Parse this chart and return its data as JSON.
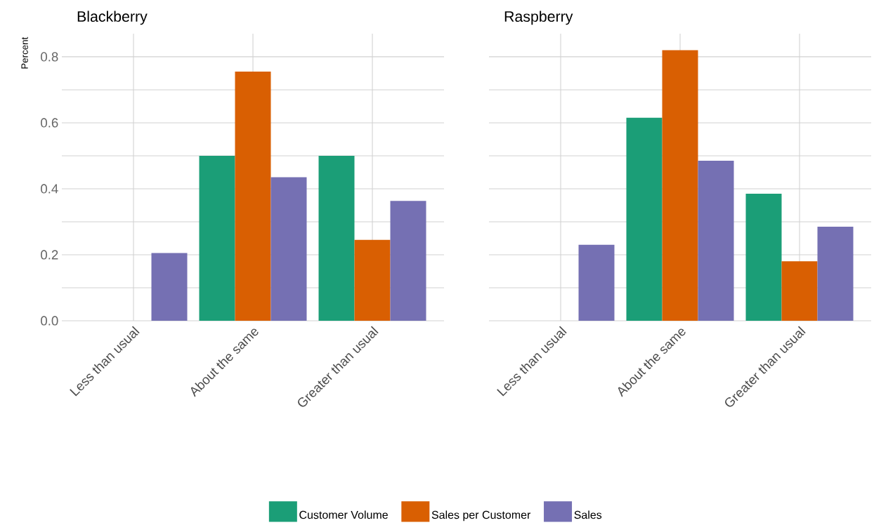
{
  "chart_data": [
    {
      "type": "bar",
      "title": "Blackberry",
      "ylabel": "Percent",
      "categories": [
        "Less than usual",
        "About the same",
        "Greater than usual"
      ],
      "series": [
        {
          "name": "Customer Volume",
          "color": "#1b9e77",
          "values": [
            null,
            0.5,
            0.5
          ]
        },
        {
          "name": "Sales per Customer",
          "color": "#d95f02",
          "values": [
            null,
            0.755,
            0.245
          ]
        },
        {
          "name": "Sales",
          "color": "#7570b3",
          "values": [
            0.205,
            0.435,
            0.363
          ]
        }
      ],
      "ylim": [
        0,
        0.87
      ],
      "yticks": [
        {
          "value": 0,
          "label": "0.0"
        },
        {
          "value": 0.1,
          "label": null
        },
        {
          "value": 0.2,
          "label": "0.2"
        },
        {
          "value": 0.3,
          "label": null
        },
        {
          "value": 0.4,
          "label": "0.4"
        },
        {
          "value": 0.5,
          "label": null
        },
        {
          "value": 0.6,
          "label": "0.6"
        },
        {
          "value": 0.7,
          "label": null
        },
        {
          "value": 0.8,
          "label": "0.8"
        }
      ],
      "grid": true,
      "legend": "bottom"
    },
    {
      "type": "bar",
      "title": "Raspberry",
      "categories": [
        "Less than usual",
        "About the same",
        "Greater than usual"
      ],
      "series": [
        {
          "color": "#1b9e77",
          "values": [
            null,
            0.615,
            0.385
          ]
        },
        {
          "color": "#d95f02",
          "values": [
            null,
            0.82,
            0.18
          ]
        },
        {
          "color": "#7570b3",
          "values": [
            0.23,
            0.485,
            0.285
          ]
        }
      ],
      "ylim": [
        0,
        0.87
      ],
      "yticks": [
        0,
        0.1,
        0.2,
        0.3,
        0.4,
        0.5,
        0.6,
        0.7,
        0.8
      ],
      "grid": true,
      "tick_labels": "x"
    }
  ]
}
